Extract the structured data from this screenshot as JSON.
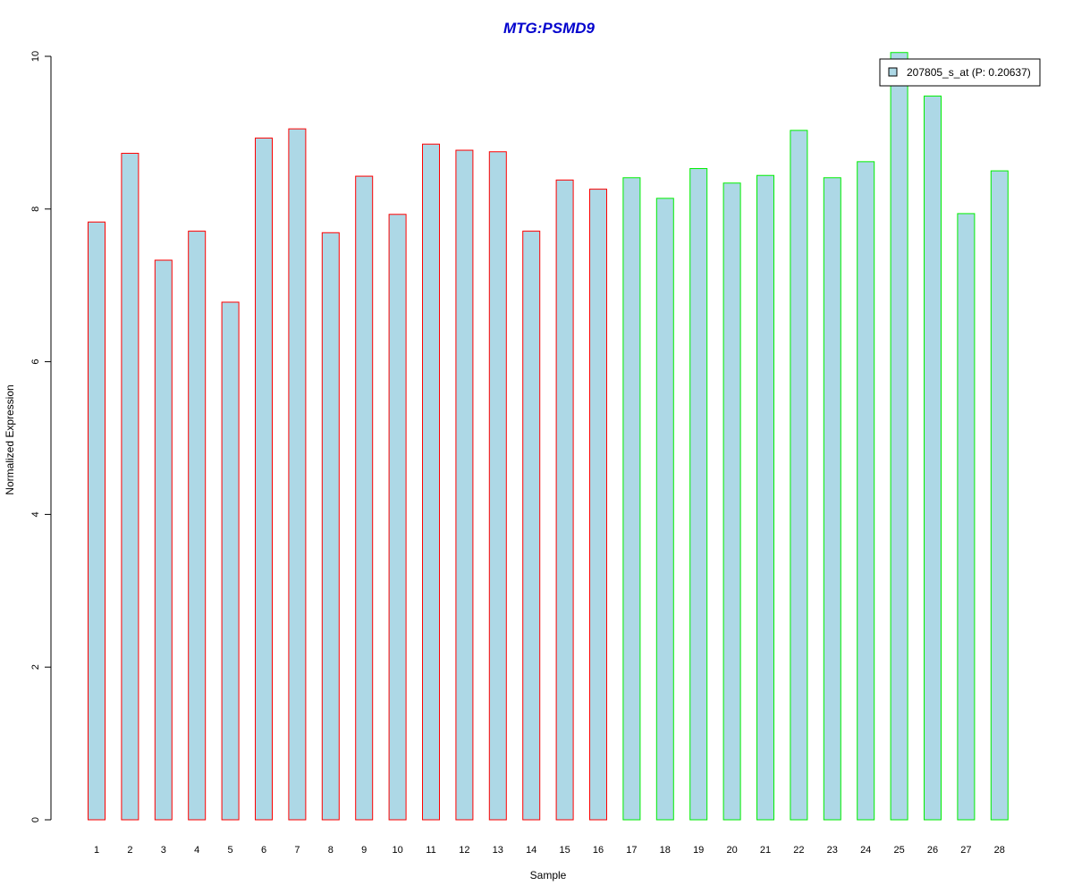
{
  "chart_data": {
    "type": "bar",
    "title": "MTG:PSMD9",
    "xlabel": "Sample",
    "ylabel": "Normalized Expression",
    "ylim": [
      0,
      10
    ],
    "yticks": [
      0,
      2,
      4,
      6,
      8,
      10
    ],
    "grid": false,
    "legend_position": "top-right",
    "categories": [
      "1",
      "2",
      "3",
      "4",
      "5",
      "6",
      "7",
      "8",
      "9",
      "10",
      "11",
      "12",
      "13",
      "14",
      "15",
      "16",
      "17",
      "18",
      "19",
      "20",
      "21",
      "22",
      "23",
      "24",
      "25",
      "26",
      "27",
      "28"
    ],
    "series": [
      {
        "name": "207805_s_at (P: 0.20637)",
        "values": [
          7.83,
          8.73,
          7.33,
          7.71,
          6.78,
          8.93,
          9.05,
          7.69,
          8.43,
          7.93,
          8.85,
          8.77,
          8.75,
          7.71,
          8.38,
          8.26,
          8.41,
          8.14,
          8.53,
          8.34,
          8.44,
          9.03,
          8.41,
          8.62,
          10.05,
          9.48,
          7.94,
          8.5
        ],
        "fill": "#add8e6",
        "group_border_colors": [
          "#ff0000",
          "#ff0000",
          "#ff0000",
          "#ff0000",
          "#ff0000",
          "#ff0000",
          "#ff0000",
          "#ff0000",
          "#ff0000",
          "#ff0000",
          "#ff0000",
          "#ff0000",
          "#ff0000",
          "#ff0000",
          "#ff0000",
          "#ff0000",
          "#00ee00",
          "#00ee00",
          "#00ee00",
          "#00ee00",
          "#00ee00",
          "#00ee00",
          "#00ee00",
          "#00ee00",
          "#00ee00",
          "#00ee00",
          "#00ee00",
          "#00ee00"
        ]
      }
    ],
    "title_color": "#0000cd"
  }
}
